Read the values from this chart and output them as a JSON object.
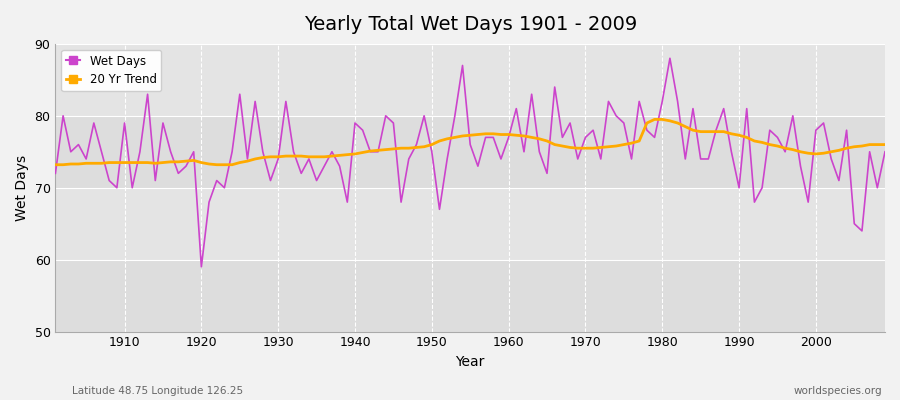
{
  "title": "Yearly Total Wet Days 1901 - 2009",
  "xlabel": "Year",
  "ylabel": "Wet Days",
  "footnote_left": "Latitude 48.75 Longitude 126.25",
  "footnote_right": "worldspecies.org",
  "ylim": [
    50,
    90
  ],
  "yticks": [
    50,
    60,
    70,
    80,
    90
  ],
  "fig_bg": "#f0f0f0",
  "plot_bg": "#e8e8e8",
  "band_color": "#d8d8d8",
  "wet_days_color": "#cc44cc",
  "trend_color": "#ffaa00",
  "years": [
    1901,
    1902,
    1903,
    1904,
    1905,
    1906,
    1907,
    1908,
    1909,
    1910,
    1911,
    1912,
    1913,
    1914,
    1915,
    1916,
    1917,
    1918,
    1919,
    1920,
    1921,
    1922,
    1923,
    1924,
    1925,
    1926,
    1927,
    1928,
    1929,
    1930,
    1931,
    1932,
    1933,
    1934,
    1935,
    1936,
    1937,
    1938,
    1939,
    1940,
    1941,
    1942,
    1943,
    1944,
    1945,
    1946,
    1947,
    1948,
    1949,
    1950,
    1951,
    1952,
    1953,
    1954,
    1955,
    1956,
    1957,
    1958,
    1959,
    1960,
    1961,
    1962,
    1963,
    1964,
    1965,
    1966,
    1967,
    1968,
    1969,
    1970,
    1971,
    1972,
    1973,
    1974,
    1975,
    1976,
    1977,
    1978,
    1979,
    1980,
    1981,
    1982,
    1983,
    1984,
    1985,
    1986,
    1987,
    1988,
    1989,
    1990,
    1991,
    1992,
    1993,
    1994,
    1995,
    1996,
    1997,
    1998,
    1999,
    2000,
    2001,
    2002,
    2003,
    2004,
    2005,
    2006,
    2007,
    2008,
    2009
  ],
  "wet_days": [
    72,
    80,
    75,
    76,
    74,
    79,
    75,
    71,
    70,
    79,
    70,
    75,
    83,
    71,
    79,
    75,
    72,
    73,
    75,
    59,
    68,
    71,
    70,
    75,
    83,
    74,
    82,
    75,
    71,
    74,
    82,
    75,
    72,
    74,
    71,
    73,
    75,
    73,
    68,
    79,
    78,
    75,
    75,
    80,
    79,
    68,
    74,
    76,
    80,
    75,
    67,
    74,
    80,
    87,
    76,
    73,
    77,
    77,
    74,
    77,
    81,
    75,
    83,
    75,
    72,
    84,
    77,
    79,
    74,
    77,
    78,
    74,
    82,
    80,
    79,
    74,
    82,
    78,
    77,
    82,
    88,
    82,
    74,
    81,
    74,
    74,
    78,
    81,
    75,
    70,
    81,
    68,
    70,
    78,
    77,
    75,
    80,
    73,
    68,
    78,
    79,
    74,
    71,
    78,
    65,
    64,
    75,
    70,
    75
  ],
  "trend": [
    73.2,
    73.2,
    73.3,
    73.3,
    73.4,
    73.4,
    73.4,
    73.5,
    73.5,
    73.5,
    73.5,
    73.5,
    73.5,
    73.4,
    73.5,
    73.6,
    73.6,
    73.7,
    73.8,
    73.5,
    73.3,
    73.2,
    73.2,
    73.2,
    73.5,
    73.7,
    74.0,
    74.2,
    74.3,
    74.3,
    74.4,
    74.4,
    74.4,
    74.3,
    74.3,
    74.3,
    74.4,
    74.5,
    74.6,
    74.7,
    74.9,
    75.1,
    75.2,
    75.3,
    75.4,
    75.5,
    75.5,
    75.6,
    75.7,
    76.0,
    76.5,
    76.8,
    77.0,
    77.2,
    77.3,
    77.4,
    77.5,
    77.5,
    77.4,
    77.4,
    77.3,
    77.2,
    77.0,
    76.8,
    76.5,
    76.0,
    75.8,
    75.6,
    75.5,
    75.5,
    75.5,
    75.6,
    75.7,
    75.8,
    76.0,
    76.2,
    76.5,
    79.0,
    79.5,
    79.5,
    79.3,
    79.0,
    78.5,
    78.0,
    77.8,
    77.8,
    77.8,
    77.8,
    77.5,
    77.3,
    77.0,
    76.5,
    76.3,
    76.0,
    75.8,
    75.5,
    75.3,
    75.0,
    74.8,
    74.7,
    74.8,
    75.0,
    75.2,
    75.5,
    75.7,
    75.8,
    76.0,
    76.0,
    76.0
  ],
  "xticks": [
    1910,
    1920,
    1930,
    1940,
    1950,
    1960,
    1970,
    1980,
    1990,
    2000
  ]
}
